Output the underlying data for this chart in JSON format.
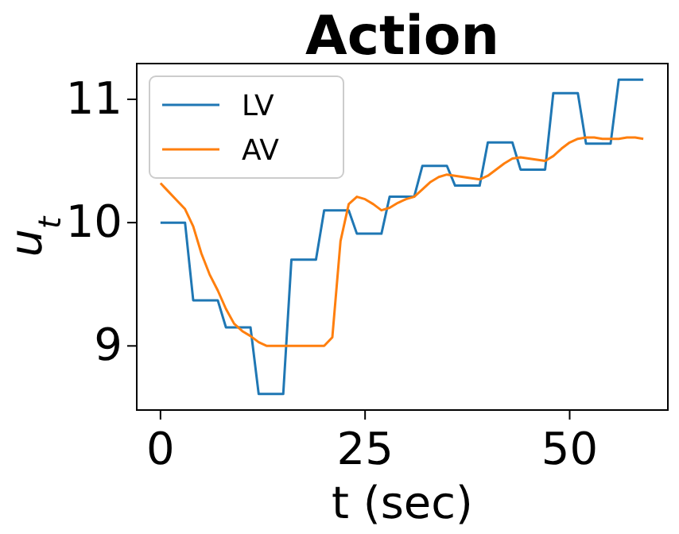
{
  "chart_data": {
    "type": "line",
    "title": "Action",
    "xlabel": "t (sec)",
    "ylabel": "u$_{t}$",
    "x": [
      0,
      1,
      2,
      3,
      4,
      5,
      6,
      7,
      8,
      9,
      10,
      11,
      12,
      13,
      14,
      15,
      16,
      17,
      18,
      19,
      20,
      21,
      22,
      23,
      24,
      25,
      26,
      27,
      28,
      29,
      30,
      31,
      32,
      33,
      34,
      35,
      36,
      37,
      38,
      39,
      40,
      41,
      42,
      43,
      44,
      45,
      46,
      47,
      48,
      49,
      50,
      51,
      52,
      53,
      54,
      55,
      56,
      57,
      58,
      59
    ],
    "series": [
      {
        "name": "LV",
        "color": "#1f77b4",
        "values": [
          10.0,
          10.0,
          10.0,
          10.0,
          9.37,
          9.37,
          9.37,
          9.37,
          9.15,
          9.15,
          9.15,
          9.15,
          8.61,
          8.61,
          8.61,
          8.61,
          9.7,
          9.7,
          9.7,
          9.7,
          10.1,
          10.1,
          10.1,
          10.1,
          9.91,
          9.91,
          9.91,
          9.91,
          10.21,
          10.21,
          10.21,
          10.21,
          10.46,
          10.46,
          10.46,
          10.46,
          10.3,
          10.3,
          10.3,
          10.3,
          10.65,
          10.65,
          10.65,
          10.65,
          10.43,
          10.43,
          10.43,
          10.43,
          11.05,
          11.05,
          11.05,
          11.05,
          10.64,
          10.64,
          10.64,
          10.64,
          11.16,
          11.16,
          11.16,
          11.16
        ]
      },
      {
        "name": "AV",
        "color": "#ff7f0e",
        "values": [
          10.32,
          10.25,
          10.18,
          10.11,
          9.97,
          9.75,
          9.58,
          9.45,
          9.3,
          9.18,
          9.12,
          9.08,
          9.03,
          9.0,
          9.0,
          9.0,
          9.0,
          9.0,
          9.0,
          9.0,
          9.0,
          9.07,
          9.85,
          10.15,
          10.21,
          10.19,
          10.15,
          10.1,
          10.12,
          10.16,
          10.19,
          10.21,
          10.27,
          10.33,
          10.37,
          10.39,
          10.38,
          10.37,
          10.36,
          10.35,
          10.38,
          10.43,
          10.48,
          10.52,
          10.53,
          10.52,
          10.51,
          10.5,
          10.54,
          10.6,
          10.65,
          10.68,
          10.69,
          10.69,
          10.68,
          10.68,
          10.68,
          10.69,
          10.69,
          10.68
        ]
      }
    ],
    "xlim": [
      -2.9,
      62
    ],
    "ylim": [
      8.48,
      11.29
    ],
    "xticks": [
      0,
      25,
      50
    ],
    "yticks": [
      9,
      10,
      11
    ],
    "legend": "top left",
    "grid": false,
    "marker": "none",
    "line_style": "solid"
  }
}
